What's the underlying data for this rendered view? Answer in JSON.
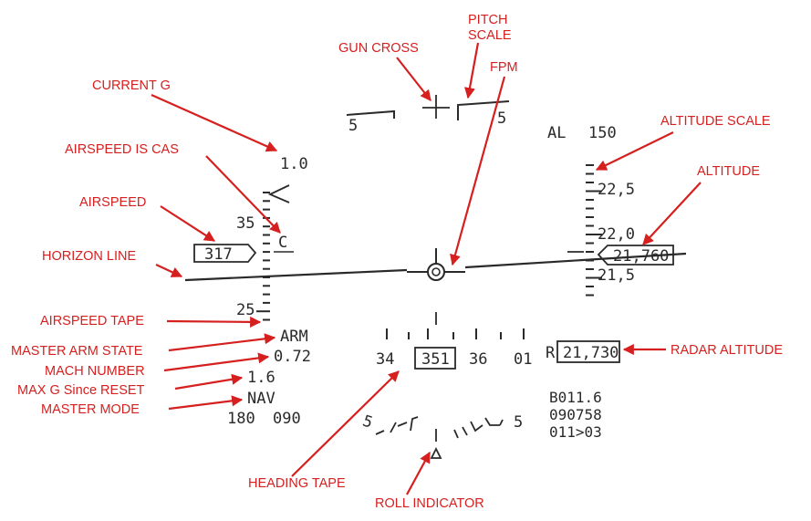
{
  "labels": {
    "pitch_scale": [
      "PITCH",
      "SCALE"
    ],
    "gun_cross": "GUN CROSS",
    "fpm": "FPM",
    "current_g": "CURRENT G",
    "airspeed_is_cas": "AIRSPEED IS CAS",
    "airspeed": "AIRSPEED",
    "horizon_line": "HORIZON LINE",
    "airspeed_tape": "AIRSPEED TAPE",
    "master_arm_state": "MASTER ARM STATE",
    "mach_number": "MACH NUMBER",
    "max_g": "MAX G Since RESET",
    "master_mode": "MASTER MODE",
    "altitude_scale": "ALTITUDE SCALE",
    "altitude": "ALTITUDE",
    "radar_altitude": "RADAR ALTITUDE",
    "heading_tape": "HEADING TAPE",
    "roll_indicator": "ROLL INDICATOR"
  },
  "hud": {
    "pitch_left": "5",
    "pitch_right": "5",
    "al_label": "AL",
    "al_value": "150",
    "current_g": "1.0",
    "airspeed_tick_upper": "35",
    "airspeed_tick_lower": "25",
    "cas_indicator": "C",
    "airspeed_box": "317",
    "alt_tick_upper": "22,5",
    "alt_tick_mid": "22,0",
    "alt_tick_lower": "21,5",
    "altitude_box": "21,760",
    "master_arm": "ARM",
    "mach": "0.72",
    "max_g": "1.6",
    "master_mode": "NAV",
    "bottom_left_1": "180",
    "bottom_left_2": "090",
    "heading_tick_1": "34",
    "heading_box": "351",
    "heading_tick_2": "36",
    "heading_tick_3": "01",
    "radar_prefix": "R",
    "radar_altitude": "21,730",
    "waypoint_line_1": "B011.6",
    "waypoint_line_2": "090758",
    "waypoint_line_3": "011>03",
    "roll_left_digit": "5",
    "roll_right_digit": "5"
  }
}
